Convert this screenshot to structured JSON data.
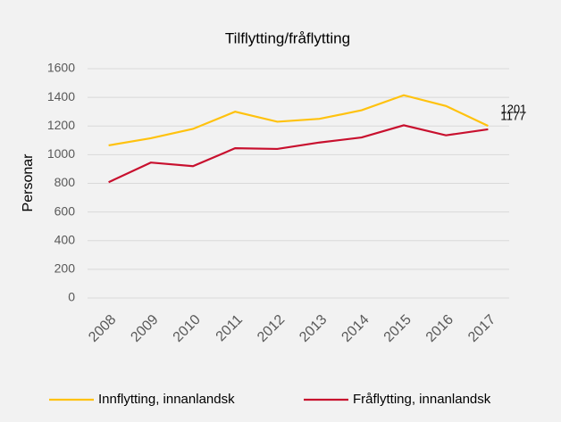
{
  "chart_data": {
    "type": "line",
    "title": "Tilflytting/fråflytting",
    "y_label": "Personar",
    "categories": [
      "2008",
      "2009",
      "2010",
      "2011",
      "2012",
      "2013",
      "2014",
      "2015",
      "2016",
      "2017"
    ],
    "series": [
      {
        "name": "Innflytting, innanlandsk",
        "color": "#ffc20e",
        "values": [
          1065,
          1115,
          1180,
          1300,
          1230,
          1250,
          1310,
          1415,
          1340,
          1201
        ]
      },
      {
        "name": "Fråflytting, innanlandsk",
        "color": "#c8102e",
        "values": [
          808,
          945,
          920,
          1045,
          1040,
          1085,
          1120,
          1205,
          1135,
          1177
        ]
      }
    ],
    "ylim": [
      0,
      1600
    ],
    "yticks": [
      0,
      200,
      400,
      600,
      800,
      1000,
      1200,
      1400,
      1600
    ],
    "grid": true,
    "legend": "bottom"
  }
}
